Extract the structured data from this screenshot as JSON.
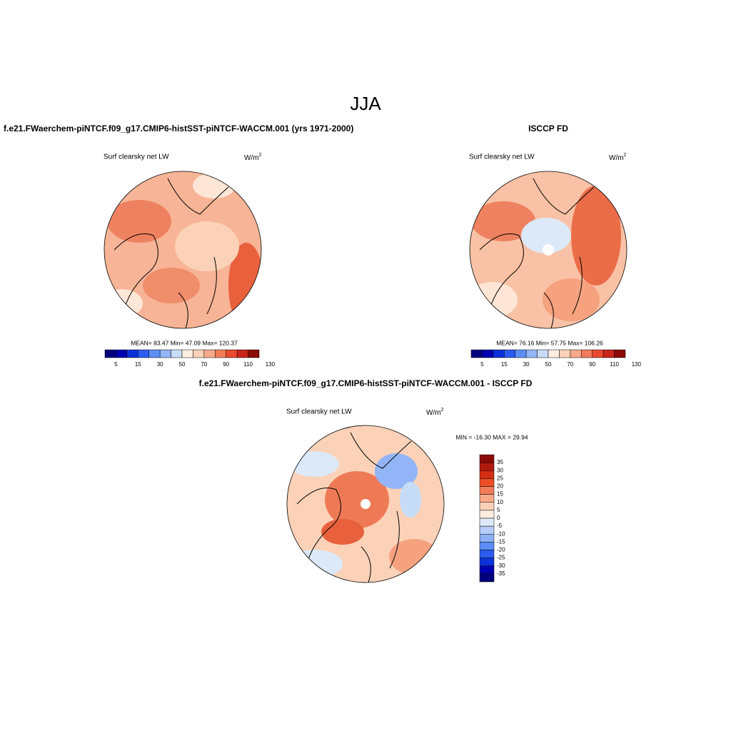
{
  "title": "JJA",
  "panels": [
    {
      "case_title": "f.e21.FWaerchem-piNTCF.f09_g17.CMIP6-histSST-piNTCF-WACCM.001 (yrs 1971-2000)",
      "variable": "Surf clearsky net LW",
      "units": "W/m",
      "units_sup": "2",
      "stats": "MEAN=  83.47  Min=  47.09  Max= 120.37",
      "colorbar_labels": [
        5,
        15,
        30,
        50,
        70,
        90,
        110,
        130
      ]
    },
    {
      "case_title": "ISCCP FD",
      "variable": "Surf clearsky net LW",
      "units": "W/m",
      "units_sup": "2",
      "stats": "MEAN=  76.16  Min=  57.75  Max= 106.26",
      "colorbar_labels": [
        5,
        15,
        30,
        50,
        70,
        90,
        110,
        130
      ]
    }
  ],
  "difference": {
    "case_title": "f.e21.FWaerchem-piNTCF.f09_g17.CMIP6-histSST-piNTCF-WACCM.001 - ISCCP FD",
    "variable": "Surf clearsky net LW",
    "units": "W/m",
    "units_sup": "2",
    "stats": "MIN = -16.30 MAX =  29.94",
    "colorbar_labels": [
      35,
      30,
      25,
      20,
      15,
      10,
      5,
      0,
      -5,
      -10,
      -15,
      -20,
      -25,
      -30,
      -35
    ]
  }
}
